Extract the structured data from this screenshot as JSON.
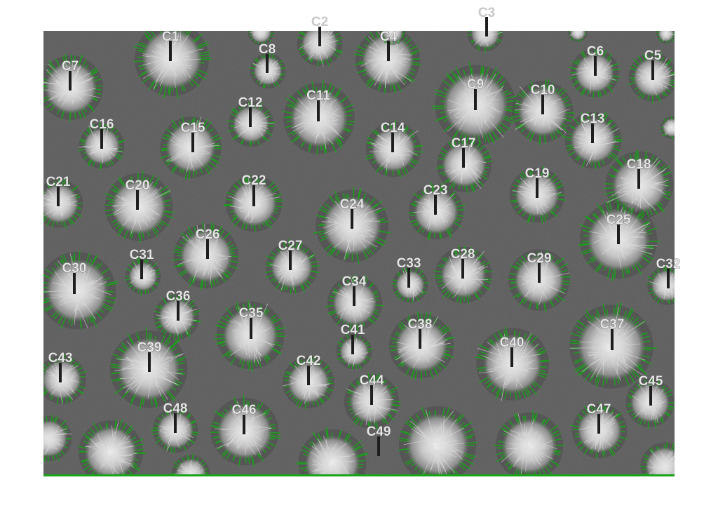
{
  "colors": {
    "page_background": "#ffffff",
    "substrate": "#5a5a5a",
    "fiber": "#dcdcdc",
    "edge_highlight": "#19a319",
    "marker_line": "#1e1e1e",
    "label_text": "#e6e6e6"
  },
  "clusters": [
    {
      "label": "C1"
    },
    {
      "label": "C2"
    },
    {
      "label": "C3"
    },
    {
      "label": "C4"
    },
    {
      "label": "C5"
    },
    {
      "label": "C6"
    },
    {
      "label": "C7"
    },
    {
      "label": "C8"
    },
    {
      "label": "C9"
    },
    {
      "label": "C10"
    },
    {
      "label": "C11"
    },
    {
      "label": "C12"
    },
    {
      "label": "C13"
    },
    {
      "label": "C14"
    },
    {
      "label": "C15"
    },
    {
      "label": "C16"
    },
    {
      "label": "C17"
    },
    {
      "label": "C18"
    },
    {
      "label": "C19"
    },
    {
      "label": "C20"
    },
    {
      "label": "C21"
    },
    {
      "label": "C22"
    },
    {
      "label": "C23"
    },
    {
      "label": "C24"
    },
    {
      "label": "C25"
    },
    {
      "label": "C26"
    },
    {
      "label": "C27"
    },
    {
      "label": "C28"
    },
    {
      "label": "C29"
    },
    {
      "label": "C30"
    },
    {
      "label": "C31"
    },
    {
      "label": "C32"
    },
    {
      "label": "C33"
    },
    {
      "label": "C34"
    },
    {
      "label": "C35"
    },
    {
      "label": "C36"
    },
    {
      "label": "C37"
    },
    {
      "label": "C38"
    },
    {
      "label": "C39"
    },
    {
      "label": "C40"
    },
    {
      "label": "C41"
    },
    {
      "label": "C42"
    },
    {
      "label": "C43"
    },
    {
      "label": "C44"
    },
    {
      "label": "C45"
    },
    {
      "label": "C46"
    },
    {
      "label": "C47"
    },
    {
      "label": "C48"
    },
    {
      "label": "C49"
    }
  ]
}
